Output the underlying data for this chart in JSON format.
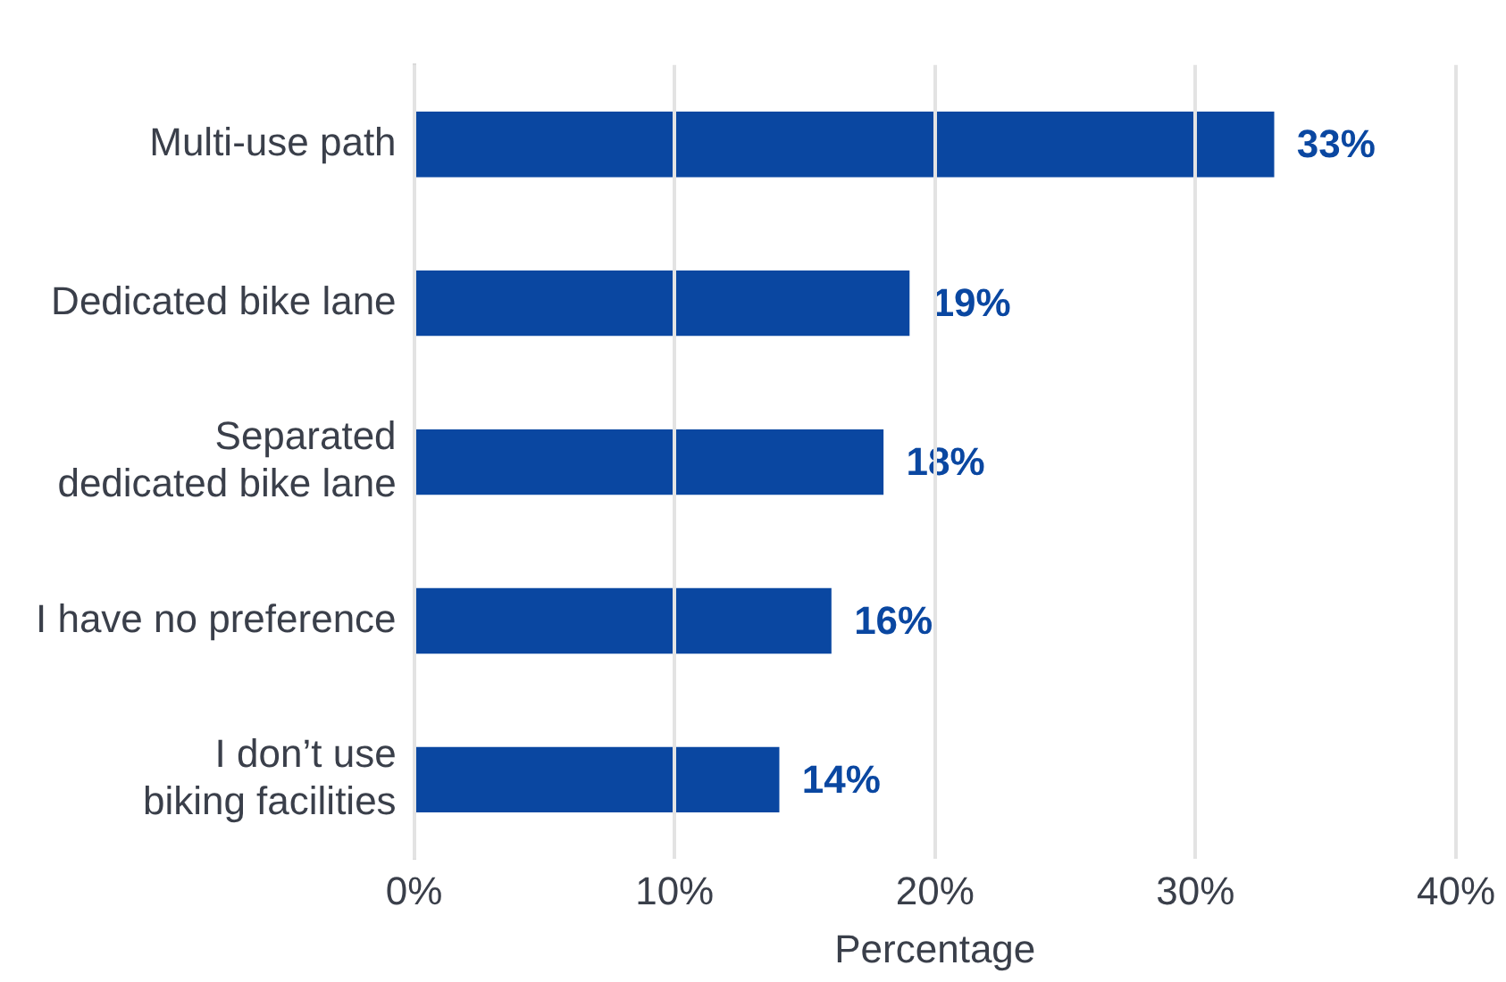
{
  "chart_data": {
    "type": "bar",
    "orientation": "horizontal",
    "xlabel": "Percentage",
    "categories": [
      "Multi-use path",
      "Dedicated bike lane",
      "Separated\ndedicated bike lane",
      "I have no preference",
      "I don’t use\nbiking facilities"
    ],
    "values": [
      33,
      19,
      18,
      16,
      14
    ],
    "color": "#0a47a1",
    "value_labels": [
      "33%",
      "19%",
      "18%",
      "16%",
      "14%"
    ],
    "xlim": [
      0,
      40
    ],
    "xticks": [
      {
        "value": 0,
        "label": "0%"
      },
      {
        "value": 10,
        "label": "10%"
      },
      {
        "value": 20,
        "label": "20%"
      },
      {
        "value": 30,
        "label": "30%"
      },
      {
        "value": 40,
        "label": "40%"
      }
    ],
    "grid": "x",
    "legend": false
  }
}
